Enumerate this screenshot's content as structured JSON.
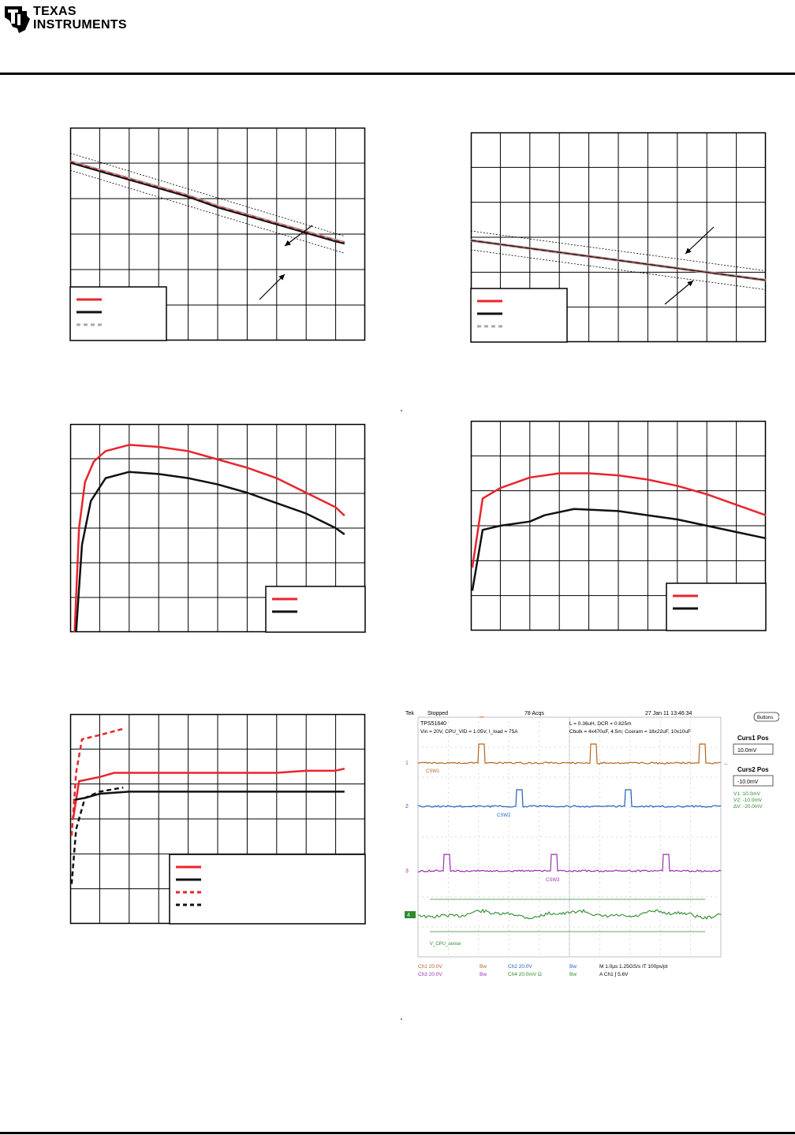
{
  "header": {
    "brand_line1": "Texas",
    "brand_line2": "Instruments"
  },
  "colors": {
    "red": "#e8252d",
    "black": "#111111",
    "gray_dash": "#a9a9a9",
    "grid": "#000000",
    "scope_ch1": "#b5651d",
    "scope_ch2": "#1f5fbf",
    "scope_ch3": "#9b2fae",
    "scope_ch4": "#2e8b2e"
  },
  "scope": {
    "top_left": "Tek",
    "state": "Stopped",
    "acqs": "78 Acqs",
    "timestamp": "27 Jan 11 13:46:34",
    "buttons_label": "Buttons",
    "device": "TPS51640",
    "params_line1": "Vin = 20V, CPU_VID = 1.05V, I_load = 75A",
    "params_right1": "L = 0.36uH, DCR = 0.825m",
    "params_right2": "Cbulk = 4x470uF, 4.5m;  Cceram = 18x22uF, 10x10uF",
    "curs1_title": "Curs1 Pos",
    "curs1_value": "10.0mV",
    "curs2_title": "Curs2 Pos",
    "curs2_value": "-10.0mV",
    "readout_v1": "V1:     10.0mV",
    "readout_v2": "V2:    -10.0mV",
    "readout_dv": "ΔV:    -20.0mV",
    "ch_labels": [
      "CSW1",
      "CSW2",
      "CSW3",
      "V_CPU_sense"
    ],
    "marker_1": "1",
    "marker_2": "2",
    "marker_3": "3",
    "marker_4": "4",
    "foot_ch1": "Ch1   20.0V",
    "foot_ch3": "Ch3   20.0V",
    "foot_bw1": "Bw",
    "foot_bw3": "Bw",
    "foot_ch2": "Ch2   20.0V",
    "foot_ch4": "Ch4   20.0mV  Ω",
    "foot_bw2": "Bw",
    "foot_bw4": "Bw",
    "foot_time": "M 1.0μs 1.25GS/s     IT 100ps/pt",
    "foot_trig": "A  Ch1  ∫  5.6V"
  },
  "chart_data": [
    {
      "type": "line",
      "title": "",
      "series": [
        {
          "values": [
            [
              0,
              0.84
            ],
            [
              1,
              0.8
            ],
            [
              2,
              0.76
            ],
            [
              3,
              0.72
            ],
            [
              4,
              0.68
            ],
            [
              5,
              0.63
            ],
            [
              6,
              0.59
            ],
            [
              7,
              0.55
            ],
            [
              8,
              0.51
            ],
            [
              9,
              0.47
            ],
            [
              9.3,
              0.46
            ]
          ]
        },
        {
          "values": [
            [
              0,
              0.84
            ],
            [
              1,
              0.8
            ],
            [
              2,
              0.76
            ],
            [
              3,
              0.72
            ],
            [
              4,
              0.68
            ],
            [
              5,
              0.63
            ],
            [
              6,
              0.59
            ],
            [
              7,
              0.55
            ],
            [
              8,
              0.51
            ],
            [
              9,
              0.47
            ],
            [
              9.3,
              0.46
            ]
          ]
        },
        {
          "values": [
            [
              0,
              0.835
            ],
            [
              1,
              0.795
            ],
            [
              2,
              0.755
            ],
            [
              3,
              0.715
            ],
            [
              4,
              0.675
            ],
            [
              5,
              0.625
            ],
            [
              6,
              0.585
            ],
            [
              7,
              0.545
            ],
            [
              8,
              0.505
            ],
            [
              9,
              0.465
            ],
            [
              9.3,
              0.455
            ]
          ]
        }
      ],
      "limit_lines": [
        {
          "values": [
            [
              0,
              0.88
            ],
            [
              9.3,
              0.49
            ]
          ]
        },
        {
          "values": [
            [
              0,
              0.8
            ],
            [
              9.3,
              0.41
            ]
          ]
        }
      ],
      "xlim": [
        0,
        10
      ],
      "ylim": [
        0,
        1
      ],
      "grid": true,
      "legend": "bottom-left"
    },
    {
      "type": "line",
      "title": "",
      "series": [
        {
          "values": [
            [
              0,
              0.485
            ],
            [
              10,
              0.295
            ]
          ]
        },
        {
          "values": [
            [
              0,
              0.485
            ],
            [
              10,
              0.295
            ]
          ]
        },
        {
          "values": [
            [
              0,
              0.485
            ],
            [
              10,
              0.295
            ]
          ]
        }
      ],
      "limit_lines": [
        {
          "values": [
            [
              0,
              0.53
            ],
            [
              10,
              0.34
            ]
          ]
        },
        {
          "values": [
            [
              0,
              0.44
            ],
            [
              10,
              0.25
            ]
          ]
        }
      ],
      "xlim": [
        0,
        10
      ],
      "ylim": [
        0,
        1
      ],
      "grid": true,
      "legend": "bottom-left"
    },
    {
      "type": "line",
      "title": "",
      "series": [
        {
          "values": [
            [
              0.15,
              0.0
            ],
            [
              0.3,
              0.5
            ],
            [
              0.5,
              0.72
            ],
            [
              0.8,
              0.82
            ],
            [
              1.2,
              0.87
            ],
            [
              2,
              0.9
            ],
            [
              3,
              0.89
            ],
            [
              4,
              0.87
            ],
            [
              5,
              0.83
            ],
            [
              6,
              0.79
            ],
            [
              7,
              0.74
            ],
            [
              8,
              0.67
            ],
            [
              9,
              0.6
            ],
            [
              9.3,
              0.56
            ]
          ]
        },
        {
          "values": [
            [
              0.2,
              0.0
            ],
            [
              0.4,
              0.42
            ],
            [
              0.7,
              0.63
            ],
            [
              1.2,
              0.74
            ],
            [
              2,
              0.77
            ],
            [
              3,
              0.76
            ],
            [
              4,
              0.74
            ],
            [
              5,
              0.71
            ],
            [
              6,
              0.67
            ],
            [
              7,
              0.62
            ],
            [
              8,
              0.57
            ],
            [
              9,
              0.5
            ],
            [
              9.3,
              0.47
            ]
          ]
        }
      ],
      "xlim": [
        0,
        10
      ],
      "ylim": [
        0,
        1
      ],
      "grid": true,
      "legend": "bottom-right"
    },
    {
      "type": "line",
      "title": "",
      "series": [
        {
          "values": [
            [
              0.05,
              0.3
            ],
            [
              0.4,
              0.63
            ],
            [
              1,
              0.68
            ],
            [
              2,
              0.73
            ],
            [
              3,
              0.75
            ],
            [
              4,
              0.75
            ],
            [
              5,
              0.74
            ],
            [
              6,
              0.72
            ],
            [
              7,
              0.69
            ],
            [
              8,
              0.65
            ],
            [
              9,
              0.6
            ],
            [
              10,
              0.55
            ]
          ]
        },
        {
          "values": [
            [
              0.05,
              0.19
            ],
            [
              0.4,
              0.48
            ],
            [
              1,
              0.5
            ],
            [
              2,
              0.52
            ],
            [
              2.5,
              0.55
            ],
            [
              3.5,
              0.58
            ],
            [
              5,
              0.57
            ],
            [
              6,
              0.55
            ],
            [
              7,
              0.53
            ],
            [
              8,
              0.5
            ],
            [
              9,
              0.47
            ],
            [
              10,
              0.44
            ]
          ]
        }
      ],
      "xlim": [
        0,
        10
      ],
      "ylim": [
        0,
        1
      ],
      "grid": true,
      "legend": "bottom-right"
    },
    {
      "type": "line",
      "title": "",
      "series": [
        {
          "values": [
            [
              0.1,
              0.5
            ],
            [
              0.3,
              0.68
            ],
            [
              1,
              0.7
            ],
            [
              1.5,
              0.72
            ],
            [
              3,
              0.72
            ],
            [
              5,
              0.72
            ],
            [
              6,
              0.72
            ],
            [
              7,
              0.72
            ],
            [
              8,
              0.73
            ],
            [
              9,
              0.73
            ],
            [
              9.3,
              0.74
            ]
          ]
        },
        {
          "values": [
            [
              0.1,
              0.59
            ],
            [
              0.5,
              0.6
            ],
            [
              1,
              0.62
            ],
            [
              2,
              0.63
            ],
            [
              4,
              0.63
            ],
            [
              6,
              0.63
            ],
            [
              8,
              0.63
            ],
            [
              9.3,
              0.63
            ]
          ]
        },
        {
          "values": [
            [
              0.05,
              0.42
            ],
            [
              0.2,
              0.72
            ],
            [
              0.4,
              0.88
            ],
            [
              1,
              0.9
            ],
            [
              1.8,
              0.93
            ]
          ]
        },
        {
          "values": [
            [
              0.05,
              0.19
            ],
            [
              0.2,
              0.45
            ],
            [
              0.5,
              0.6
            ],
            [
              1,
              0.63
            ],
            [
              1.8,
              0.65
            ]
          ]
        }
      ],
      "xlim": [
        0,
        10
      ],
      "ylim": [
        0,
        1
      ],
      "grid": true,
      "legend": "bottom-right"
    }
  ]
}
